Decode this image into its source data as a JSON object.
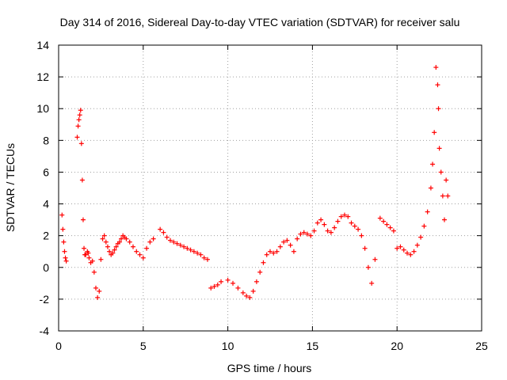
{
  "chart_data": {
    "type": "scatter",
    "title": "Day 314 of 2016, Sidereal Day-to-day VTEC variation (SDTVAR) for receiver salu",
    "xlabel": "GPS time / hours",
    "ylabel": "SDTVAR / TECUs",
    "xlim": [
      0,
      25
    ],
    "ylim": [
      -4,
      14
    ],
    "xticks": [
      0,
      5,
      10,
      15,
      20,
      25
    ],
    "yticks": [
      -4,
      -2,
      0,
      2,
      4,
      6,
      8,
      10,
      12,
      14
    ],
    "grid": true,
    "marker": "plus",
    "color": "#ff0000",
    "series": [
      {
        "name": "SDTVAR",
        "x": [
          0.2,
          0.25,
          0.3,
          0.35,
          0.4,
          0.45,
          1.1,
          1.15,
          1.2,
          1.25,
          1.3,
          1.35,
          1.4,
          1.45,
          1.5,
          1.55,
          1.6,
          1.7,
          1.75,
          1.8,
          1.9,
          2.0,
          2.1,
          2.2,
          2.3,
          2.4,
          2.5,
          2.6,
          2.7,
          2.8,
          2.9,
          3.0,
          3.1,
          3.2,
          3.3,
          3.4,
          3.5,
          3.6,
          3.7,
          3.8,
          3.9,
          4.0,
          4.2,
          4.4,
          4.6,
          4.8,
          5.0,
          5.2,
          5.4,
          5.6,
          6.0,
          6.2,
          6.4,
          6.6,
          6.8,
          7.0,
          7.2,
          7.4,
          7.6,
          7.8,
          8.0,
          8.2,
          8.4,
          8.6,
          8.8,
          9.0,
          9.2,
          9.4,
          9.6,
          10.0,
          10.3,
          10.6,
          10.9,
          11.1,
          11.3,
          11.5,
          11.7,
          11.9,
          12.1,
          12.3,
          12.5,
          12.7,
          12.9,
          13.1,
          13.3,
          13.5,
          13.7,
          13.9,
          14.1,
          14.3,
          14.5,
          14.7,
          14.9,
          15.1,
          15.3,
          15.5,
          15.7,
          15.9,
          16.1,
          16.3,
          16.5,
          16.7,
          16.9,
          17.1,
          17.3,
          17.5,
          17.7,
          17.9,
          18.1,
          18.3,
          18.5,
          18.7,
          19.0,
          19.2,
          19.4,
          19.6,
          19.8,
          20.0,
          20.2,
          20.4,
          20.6,
          20.8,
          21.0,
          21.2,
          21.4,
          21.6,
          21.8,
          22.0,
          22.1,
          22.2,
          22.3,
          22.4,
          22.45,
          22.5,
          22.6,
          22.7,
          22.8,
          22.9,
          23.0
        ],
        "y": [
          3.3,
          2.4,
          1.6,
          1.0,
          0.6,
          0.4,
          8.2,
          8.9,
          9.3,
          9.6,
          9.9,
          7.8,
          5.5,
          3.0,
          1.2,
          0.8,
          0.8,
          1.0,
          0.9,
          0.6,
          0.3,
          0.4,
          -0.3,
          -1.3,
          -1.9,
          -1.5,
          0.5,
          1.8,
          2.0,
          1.6,
          1.3,
          1.0,
          0.8,
          0.9,
          1.1,
          1.3,
          1.5,
          1.6,
          1.8,
          2.0,
          1.9,
          1.8,
          1.6,
          1.3,
          1.0,
          0.8,
          0.6,
          1.2,
          1.6,
          1.8,
          2.4,
          2.2,
          1.9,
          1.7,
          1.6,
          1.5,
          1.4,
          1.3,
          1.2,
          1.1,
          1.0,
          0.9,
          0.8,
          0.6,
          0.5,
          -1.3,
          -1.2,
          -1.1,
          -0.9,
          -0.8,
          -1.0,
          -1.3,
          -1.6,
          -1.8,
          -1.9,
          -1.5,
          -0.9,
          -0.3,
          0.3,
          0.8,
          1.0,
          0.9,
          1.0,
          1.3,
          1.6,
          1.7,
          1.4,
          1.0,
          1.8,
          2.1,
          2.2,
          2.1,
          2.0,
          2.3,
          2.8,
          3.0,
          2.7,
          2.3,
          2.2,
          2.5,
          2.9,
          3.2,
          3.3,
          3.2,
          2.8,
          2.6,
          2.4,
          2.0,
          1.2,
          0.0,
          -1.0,
          0.5,
          3.1,
          2.9,
          2.7,
          2.5,
          2.3,
          1.2,
          1.3,
          1.1,
          0.9,
          0.8,
          1.0,
          1.4,
          1.9,
          2.6,
          3.5,
          5.0,
          6.5,
          8.5,
          12.6,
          11.5,
          10.0,
          7.5,
          6.0,
          4.5,
          3.0,
          5.5,
          4.5
        ]
      }
    ]
  }
}
